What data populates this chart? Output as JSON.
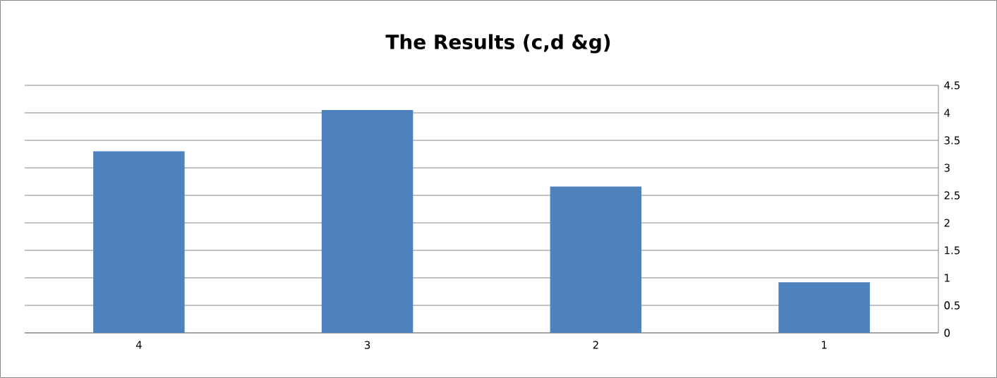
{
  "chart_data": {
    "type": "bar",
    "title": "The Results (c,d &g)",
    "categories": [
      "4",
      "3",
      "2",
      "1"
    ],
    "values": [
      3.3,
      4.05,
      2.66,
      0.92
    ],
    "color": "#4f81bd",
    "ylim": [
      0,
      4.5
    ],
    "yticks": [
      0,
      0.5,
      1,
      1.5,
      2,
      2.5,
      3,
      3.5,
      4,
      4.5
    ],
    "grid": "y"
  }
}
